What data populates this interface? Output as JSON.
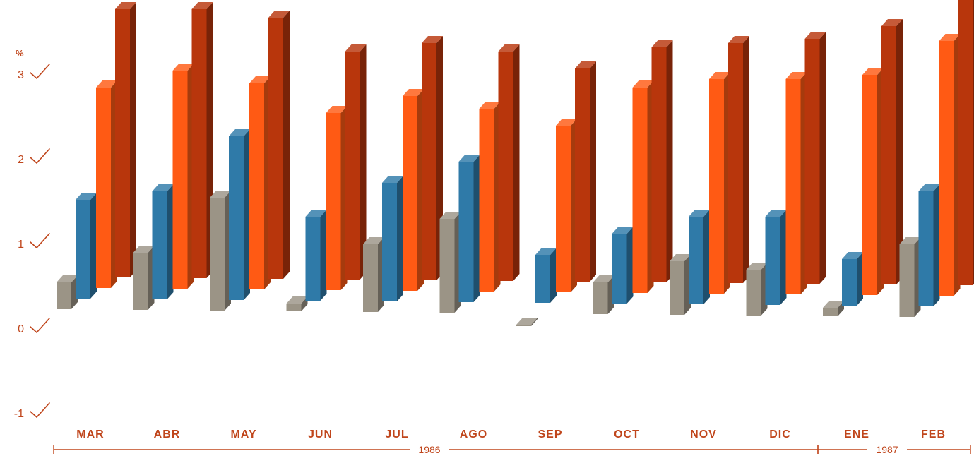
{
  "chart_data": {
    "type": "bar",
    "title": "",
    "xlabel": "",
    "ylabel": "%",
    "ylim": [
      -1,
      3.6
    ],
    "y_ticks": [
      {
        "value": 3,
        "label": "3"
      },
      {
        "value": 2,
        "label": "2"
      },
      {
        "value": 1,
        "label": "1"
      },
      {
        "value": 0,
        "label": "0"
      },
      {
        "value": -1,
        "label": "-1"
      }
    ],
    "categories": [
      "MAR",
      "ABR",
      "MAY",
      "JUN",
      "JUL",
      "AGO",
      "SEP",
      "OCT",
      "NOV",
      "DIC",
      "ENE",
      "FEB"
    ],
    "series": [
      {
        "color": "#9b9486",
        "values": [
          0.6,
          0.95,
          1.6,
          0.35,
          1.05,
          1.35,
          0.1,
          0.6,
          0.85,
          0.75,
          0.3,
          1.05
        ]
      },
      {
        "color": "#2f7aa8",
        "values": [
          1.45,
          1.55,
          2.2,
          1.25,
          1.65,
          1.9,
          0.8,
          1.05,
          1.25,
          1.25,
          0.75,
          1.55
        ]
      },
      {
        "color": "#ff5a14",
        "values": [
          2.65,
          2.85,
          2.7,
          2.35,
          2.55,
          2.4,
          2.2,
          2.65,
          2.75,
          2.75,
          2.8,
          3.2
        ]
      },
      {
        "color": "#b8360c",
        "values": [
          3.45,
          3.45,
          3.35,
          2.95,
          3.05,
          2.95,
          2.75,
          3.0,
          3.05,
          3.1,
          3.25,
          3.6
        ]
      }
    ],
    "years": [
      {
        "label": "1986",
        "from": "MAR",
        "to": "DIC"
      },
      {
        "label": "1987",
        "from": "ENE",
        "to": "FEB"
      }
    ],
    "grid": false,
    "legend": "none"
  }
}
